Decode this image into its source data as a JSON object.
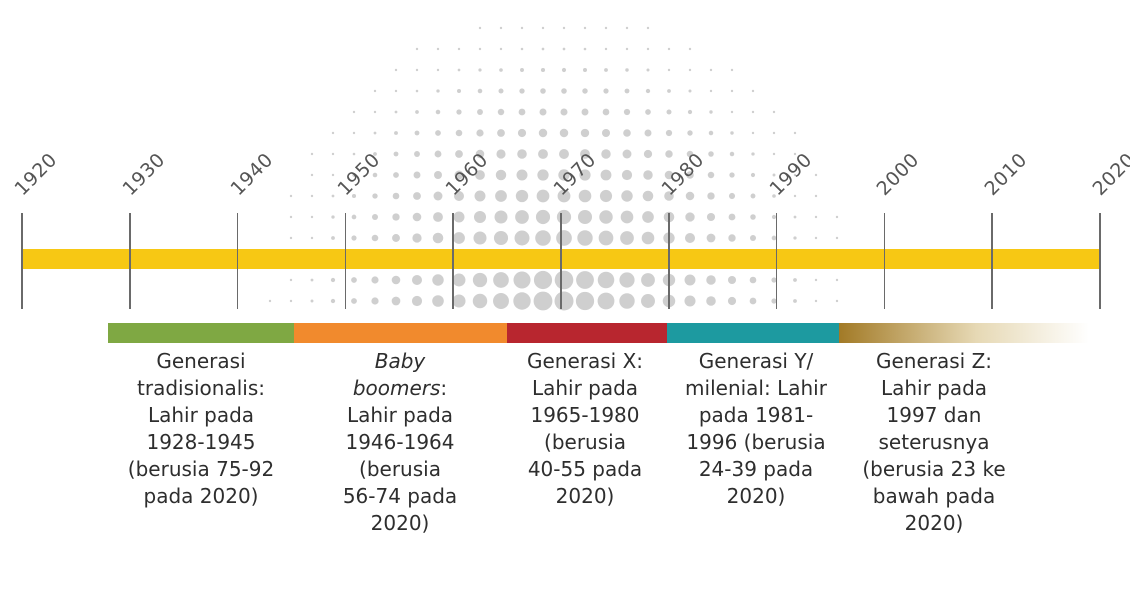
{
  "years": [
    "1920",
    "1930",
    "1940",
    "1950",
    "1960",
    "1970",
    "1980",
    "1990",
    "2000",
    "2010",
    "2020"
  ],
  "colors": {
    "timeline": "#f7c814",
    "tradisionalis": "#7fa843",
    "boomers": "#f18a2d",
    "genx": "#b8262f",
    "geny": "#1d9aa0",
    "genz": "#a27a26",
    "dots": "#cfcfcf",
    "ticks": "#6a6a6a"
  },
  "generations": [
    {
      "id": "tradisionalis",
      "lines": [
        "Generasi",
        "tradisionalis:",
        "Lahir pada",
        "1928-1945",
        "(berusia 75-92",
        "pada 2020)"
      ]
    },
    {
      "id": "boomers",
      "italic_line1": "Baby",
      "italic_line2": "boomers",
      "line2_suffix": ":",
      "lines": [
        "Lahir pada",
        "1946-1964",
        "(berusia",
        "56-74 pada",
        "2020)"
      ]
    },
    {
      "id": "genx",
      "lines": [
        "Generasi X:",
        "Lahir pada",
        "1965-1980",
        "(berusia",
        "40-55 pada",
        "2020)"
      ]
    },
    {
      "id": "geny",
      "lines": [
        "Generasi Y/",
        "milenial: Lahir",
        "pada 1981-",
        "1996 (berusia",
        "24-39 pada",
        "2020)"
      ]
    },
    {
      "id": "genz",
      "lines": [
        "Generasi Z:",
        "Lahir pada",
        "1997 dan",
        "seterusnya",
        "(berusia 23 ke",
        "bawah pada",
        "2020)"
      ]
    }
  ]
}
